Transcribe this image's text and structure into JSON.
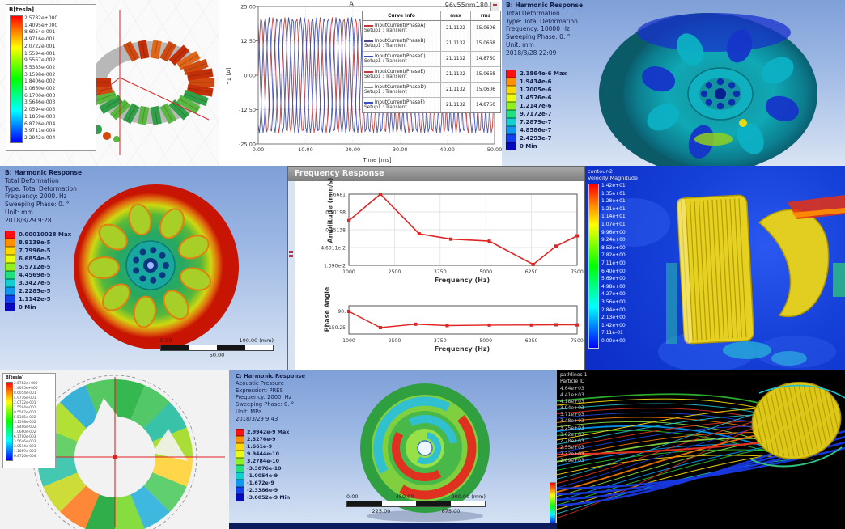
{
  "panels": {
    "flux_torus": {
      "legend_title": "B[tesla]",
      "legend_values": [
        "2.5782e+000",
        "1.4095e+000",
        "8.6054e-001",
        "4.9716e-001",
        "2.0722e-001",
        "1.5594e-001",
        "9.5567e-002",
        "5.5385e-002",
        "3.1598e-002",
        "1.8406e-002",
        "1.0660e-002",
        "6.1700e-003",
        "3.5646e-003",
        "2.0594e-003",
        "1.1859e-003",
        "6.8726e-004",
        "3.9711e-004",
        "2.2942e-004"
      ]
    },
    "deform_wheel_top": {
      "info": [
        "B: Harmonic Response",
        "Total Deformation",
        "Type: Total Deformation",
        "Frequency: 10000 Hz",
        "Sweeping Phase: 0. °",
        "Unit: mm",
        "2018/3/28 22:09"
      ],
      "legend": [
        {
          "label": "2.1864e-6 Max",
          "color": "#ff1010"
        },
        {
          "label": "1.9434e-6",
          "color": "#ff9000"
        },
        {
          "label": "1.7005e-6",
          "color": "#ffd800"
        },
        {
          "label": "1.4576e-6",
          "color": "#e8ff10"
        },
        {
          "label": "1.2147e-6",
          "color": "#90f020"
        },
        {
          "label": "9.7172e-7",
          "color": "#20e080"
        },
        {
          "label": "7.2879e-7",
          "color": "#10d0d0"
        },
        {
          "label": "4.8586e-7",
          "color": "#1098f0"
        },
        {
          "label": "2.4293e-7",
          "color": "#1040f0"
        },
        {
          "label": "0 Min",
          "color": "#0808c0"
        }
      ]
    },
    "deform_wheel_left": {
      "info": [
        "B: Harmonic Response",
        "Total Deformation",
        "Type: Total Deformation",
        "Frequency: 2000. Hz",
        "Sweeping Phase: 0. °",
        "Unit: mm",
        "2018/3/29 9:28"
      ],
      "legend": [
        {
          "label": "0.00010028 Max",
          "color": "#ff1010"
        },
        {
          "label": "8.9139e-5",
          "color": "#ff9000"
        },
        {
          "label": "7.7996e-5",
          "color": "#ffd800"
        },
        {
          "label": "6.6854e-5",
          "color": "#e8ff10"
        },
        {
          "label": "5.5712e-5",
          "color": "#90f020"
        },
        {
          "label": "4.4569e-5",
          "color": "#20e080"
        },
        {
          "label": "3.3427e-5",
          "color": "#10d0d0"
        },
        {
          "label": "2.2285e-5",
          "color": "#1098f0"
        },
        {
          "label": "1.1142e-5",
          "color": "#1040f0"
        },
        {
          "label": "0 Min",
          "color": "#0808c0"
        }
      ],
      "scale": {
        "left": "0.00",
        "right": "100.00 (mm)",
        "mid": "50.00"
      }
    },
    "freq_response_window": {
      "title": "Frequency Response"
    },
    "cfd_velocity": {
      "header": [
        "contour-2",
        "Velocity Magnitude"
      ],
      "values": [
        "1.42e+01",
        "1.35e+01",
        "1.28e+01",
        "1.21e+01",
        "1.14e+01",
        "1.07e+01",
        "9.96e+00",
        "9.24e+00",
        "8.53e+00",
        "7.82e+00",
        "7.11e+00",
        "6.40e+00",
        "5.69e+00",
        "4.98e+00",
        "4.27e+00",
        "3.56e+00",
        "2.84e+00",
        "2.13e+00",
        "1.42e+00",
        "7.11e-01",
        "0.00e+00"
      ]
    },
    "rotor_field": {
      "legend_title": "B[tesla]",
      "legend_values": [
        "2.5782e+000",
        "1.4095e+000",
        "8.6054e-001",
        "4.9716e-001",
        "2.0722e-001",
        "1.5594e-001",
        "9.5567e-002",
        "5.5385e-002",
        "3.1598e-002",
        "1.8406e-002",
        "1.0660e-002",
        "6.1700e-003",
        "3.5646e-003",
        "2.0594e-003",
        "1.1859e-003",
        "6.8726e-004"
      ]
    },
    "acoustic_disc": {
      "info": [
        "C: Harmonic Response",
        "Acoustic Pressure",
        "Expression: PRES",
        "Frequency: 2000. Hz",
        "Sweeping Phase: 0. °",
        "Unit: MPa",
        "2018/3/29 9:43"
      ],
      "legend": [
        {
          "label": "2.9942e-9 Max",
          "color": "#ff1010"
        },
        {
          "label": "2.3276e-9",
          "color": "#ff9000"
        },
        {
          "label": "1.661e-9",
          "color": "#ffd800"
        },
        {
          "label": "9.9444e-10",
          "color": "#e8ff10"
        },
        {
          "label": "3.2784e-10",
          "color": "#90f020"
        },
        {
          "label": "-3.3876e-10",
          "color": "#20e080"
        },
        {
          "label": "-1.0054e-9",
          "color": "#10d0d0"
        },
        {
          "label": "-1.672e-9",
          "color": "#1098f0"
        },
        {
          "label": "-2.3386e-9",
          "color": "#1040f0"
        },
        {
          "label": "-3.0052e-9 Min",
          "color": "#0808c0"
        }
      ],
      "scale": {
        "left": "0.00",
        "mid": "450.00",
        "right": "900.00 (mm)",
        "q1": "225.00",
        "q3": "675.00"
      }
    },
    "pathlines": {
      "header": [
        "pathlines-1",
        "Particle ID"
      ],
      "values": [
        "4.64e+03",
        "4.41e+03",
        "4.18e+03",
        "3.94e+03",
        "3.71e+03",
        "3.48e+03",
        "3.25e+03",
        "3.02e+03",
        "2.78e+03",
        "2.55e+03",
        "2.32e+03",
        "2.09e+03"
      ]
    }
  },
  "chart_data": [
    {
      "type": "line",
      "title": "A",
      "corner_label": "96v55nm180",
      "xlabel": "Time [ms]",
      "ylabel": "Y1 [A]",
      "xlim": [
        0,
        50
      ],
      "ylim": [
        -25,
        25
      ],
      "x_ticks": [
        "0.00",
        "10.00",
        "20.00",
        "30.00",
        "40.00",
        "50.00"
      ],
      "y_ticks": [
        "25.00",
        "12.50",
        "0.00",
        "-12.50",
        "-25.00"
      ],
      "waveform": "sinusoidal three-phase currents, ~20 cycles over 50 ms",
      "table_headers": [
        "Curve Info",
        "max",
        "rms"
      ],
      "series": [
        {
          "name": "InputCurrent(PhaseA)",
          "setup": "Setup1 : Transient",
          "max": "21.1132",
          "rms": "15.0606",
          "amplitude": 21.1132,
          "phase_deg": 0,
          "color": "#c23a3a"
        },
        {
          "name": "InputCurrent(PhaseB)",
          "setup": "Setup1 : Transient",
          "max": "21.1132",
          "rms": "15.0668",
          "amplitude": 21.1132,
          "phase_deg": 240,
          "color": "#4a4a8a"
        },
        {
          "name": "InputCurrent(PhaseC)",
          "setup": "Setup1 : Transient",
          "max": "21.1132",
          "rms": "14.8750",
          "amplitude": 21.1132,
          "phase_deg": 120,
          "color": "#3a50c2"
        },
        {
          "name": "InputCurrent(PhaseE)",
          "setup": "Setup1 : Transient",
          "max": "21.1132",
          "rms": "15.0668",
          "amplitude": 21.1132,
          "phase_deg": 0,
          "color": "#c23a3a"
        },
        {
          "name": "InputCurrent(PhaseD)",
          "setup": "Setup1 : Transient",
          "max": "21.1132",
          "rms": "15.0606",
          "amplitude": 21.1132,
          "phase_deg": 240,
          "color": "#888888"
        },
        {
          "name": "InputCurrent(PhaseF)",
          "setup": "Setup1 : Transient",
          "max": "21.1132",
          "rms": "14.8750",
          "amplitude": 21.1132,
          "phase_deg": 120,
          "color": "#3a50c2"
        }
      ]
    },
    {
      "type": "line",
      "title": "Frequency Response - Amplitude",
      "xlabel": "Frequency (Hz)",
      "ylabel": "Amplitude (mm/s)",
      "y_scale": "log",
      "x_ticks": [
        "1000",
        "2500",
        "3750",
        "5000",
        "6250",
        "7500"
      ],
      "y_ticks": [
        "1.6681",
        "0.50198",
        "0.15138",
        "4.6011e-2",
        "1.390e-2"
      ],
      "xlim": [
        1000,
        7500
      ],
      "ylim": [
        0.01368,
        1.6681
      ],
      "x": [
        1000,
        1900,
        3000,
        3900,
        5000,
        6250,
        6900,
        7500
      ],
      "y": [
        0.28,
        1.67,
        0.115,
        0.08,
        0.07,
        0.0145,
        0.05,
        0.1
      ],
      "line_color": "#e02424",
      "marker": "square",
      "grid": true
    },
    {
      "type": "line",
      "title": "Frequency Response - Phase",
      "xlabel": "Frequency (Hz)",
      "ylabel": "Phase Angle",
      "x_ticks": [
        "1000",
        "2500",
        "3750",
        "5000",
        "6250",
        "7500"
      ],
      "y_ticks": [
        "90.",
        "-150.25"
      ],
      "xlim": [
        1000,
        7500
      ],
      "x": [
        1000,
        1900,
        2900,
        3800,
        5000,
        6200,
        6900,
        7500
      ],
      "y": [
        90,
        -150,
        -100,
        -120,
        -113,
        -112,
        -108,
        -110
      ],
      "line_color": "#e02424",
      "marker": "square",
      "grid": false
    }
  ]
}
